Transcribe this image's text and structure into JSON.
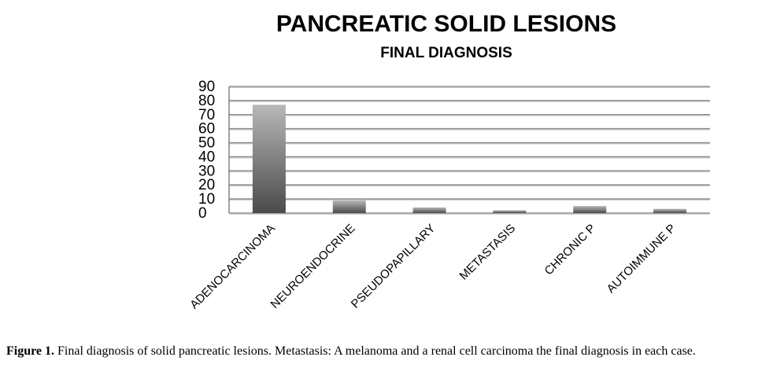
{
  "chart_data": {
    "type": "bar",
    "title": "PANCREATIC SOLID LESIONS",
    "subtitle": "FINAL DIAGNOSIS",
    "categories": [
      "ADENOCARCINOMA",
      "NEUROENDOCRINE",
      "PSEUDOPAPILLARY",
      "METASTASIS",
      "CHRONIC P",
      "AUTOIMMUNE P"
    ],
    "values": [
      77,
      9,
      4,
      2,
      5,
      3
    ],
    "ylim": [
      0,
      90
    ],
    "yticks": [
      0,
      10,
      20,
      30,
      40,
      50,
      60,
      70,
      80,
      90
    ],
    "grid": true,
    "bar_color_top": "#b8b8b8",
    "bar_color_bottom": "#4a4a4a"
  },
  "caption": {
    "label": "Figure 1.",
    "text": " Final diagnosis of solid pancreatic lesions. Metastasis:  A melanoma and a renal cell carcinoma the final diagnosis in each case."
  }
}
